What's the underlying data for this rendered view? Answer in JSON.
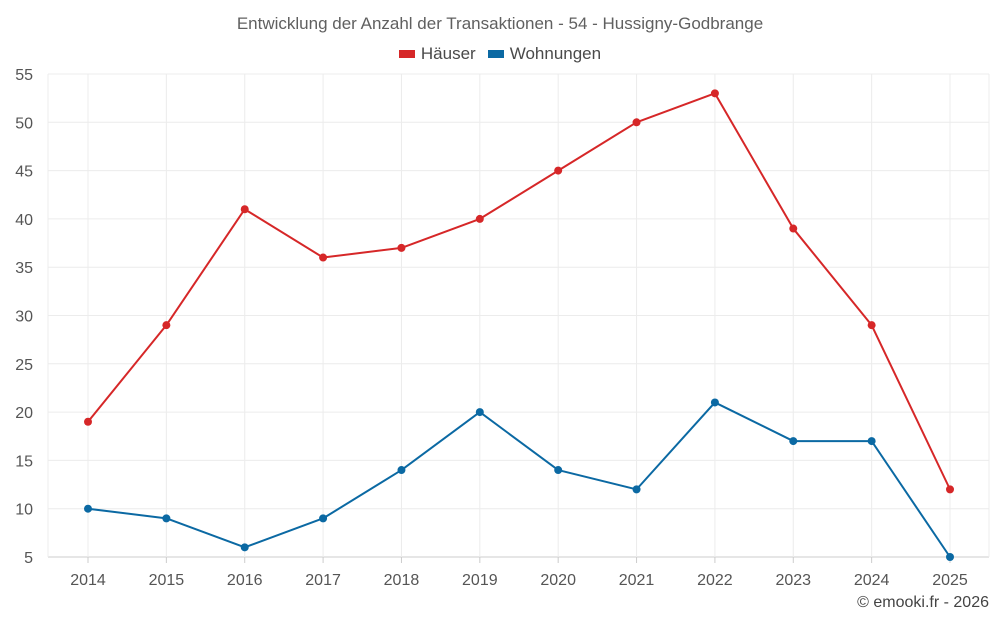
{
  "chart_data": {
    "type": "line",
    "title": "Entwicklung der Anzahl der Transaktionen - 54 - Hussigny-Godbrange",
    "xlabel": "",
    "ylabel": "",
    "categories": [
      "2014",
      "2015",
      "2016",
      "2017",
      "2018",
      "2019",
      "2020",
      "2021",
      "2022",
      "2023",
      "2024",
      "2025"
    ],
    "ylim": [
      5,
      55
    ],
    "yticks": [
      5,
      10,
      15,
      20,
      25,
      30,
      35,
      40,
      45,
      50,
      55
    ],
    "grid": true,
    "legend_position": "top-center",
    "series": [
      {
        "name": "Häuser",
        "color": "#d62728",
        "values": [
          19,
          29,
          41,
          36,
          37,
          40,
          45,
          50,
          53,
          39,
          29,
          12
        ]
      },
      {
        "name": "Wohnungen",
        "color": "#0b69a3",
        "values": [
          10,
          9,
          6,
          9,
          14,
          20,
          14,
          12,
          21,
          17,
          17,
          5
        ]
      }
    ]
  },
  "credit": "© emooki.fr - 2026"
}
